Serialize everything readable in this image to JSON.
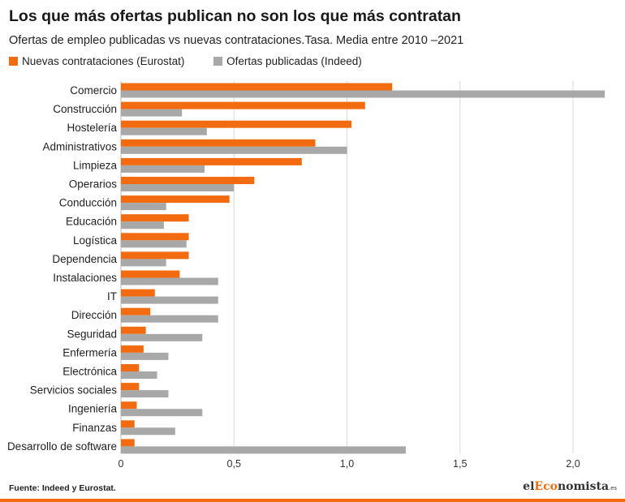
{
  "title": "Los que más ofertas publican no son los que más contratan",
  "subtitle": "Ofertas de empleo publicadas vs nuevas contrataciones.Tasa. Media entre 2010 –2021",
  "source": "Fuente: Indeed y Eurostat.",
  "brand": {
    "part1": "el",
    "part2": "Eco",
    "part3": "nomista",
    "suffix": ".es"
  },
  "colors": {
    "accent": "#f26b10",
    "secondary": "#a8a8a8",
    "grid": "#d9d9d9"
  },
  "chart_data": {
    "type": "bar",
    "orientation": "horizontal",
    "categories": [
      "Comercio",
      "Construcción",
      "Hostelería",
      "Administrativos",
      "Limpieza",
      "Operarios",
      "Conducción",
      "Educación",
      "Logística",
      "Dependencia",
      "Instalaciones",
      "IT",
      "Dirección",
      "Seguridad",
      "Enfermería",
      "Electrónica",
      "Servicios sociales",
      "Ingeniería",
      "Finanzas",
      "Desarrollo de software"
    ],
    "series": [
      {
        "name": "Nuevas contrataciones (Eurostat)",
        "color": "#f26b10",
        "values": [
          1.2,
          1.08,
          1.02,
          0.86,
          0.8,
          0.59,
          0.48,
          0.3,
          0.3,
          0.3,
          0.26,
          0.15,
          0.13,
          0.11,
          0.1,
          0.08,
          0.08,
          0.07,
          0.06,
          0.06
        ]
      },
      {
        "name": "Ofertas publicadas (Indeed)",
        "color": "#a8a8a8",
        "values": [
          2.14,
          0.27,
          0.38,
          1.0,
          0.37,
          0.5,
          0.2,
          0.19,
          0.29,
          0.2,
          0.43,
          0.43,
          0.43,
          0.36,
          0.21,
          0.16,
          0.21,
          0.36,
          0.24,
          1.26
        ]
      }
    ],
    "xlim": [
      0,
      2.2
    ],
    "xticks": [
      0,
      0.5,
      1.0,
      1.5,
      2.0
    ],
    "xtick_labels": [
      "0",
      "0,5",
      "1,0",
      "1,5",
      "2,0"
    ],
    "grid": true,
    "legend_position": "top-left"
  }
}
